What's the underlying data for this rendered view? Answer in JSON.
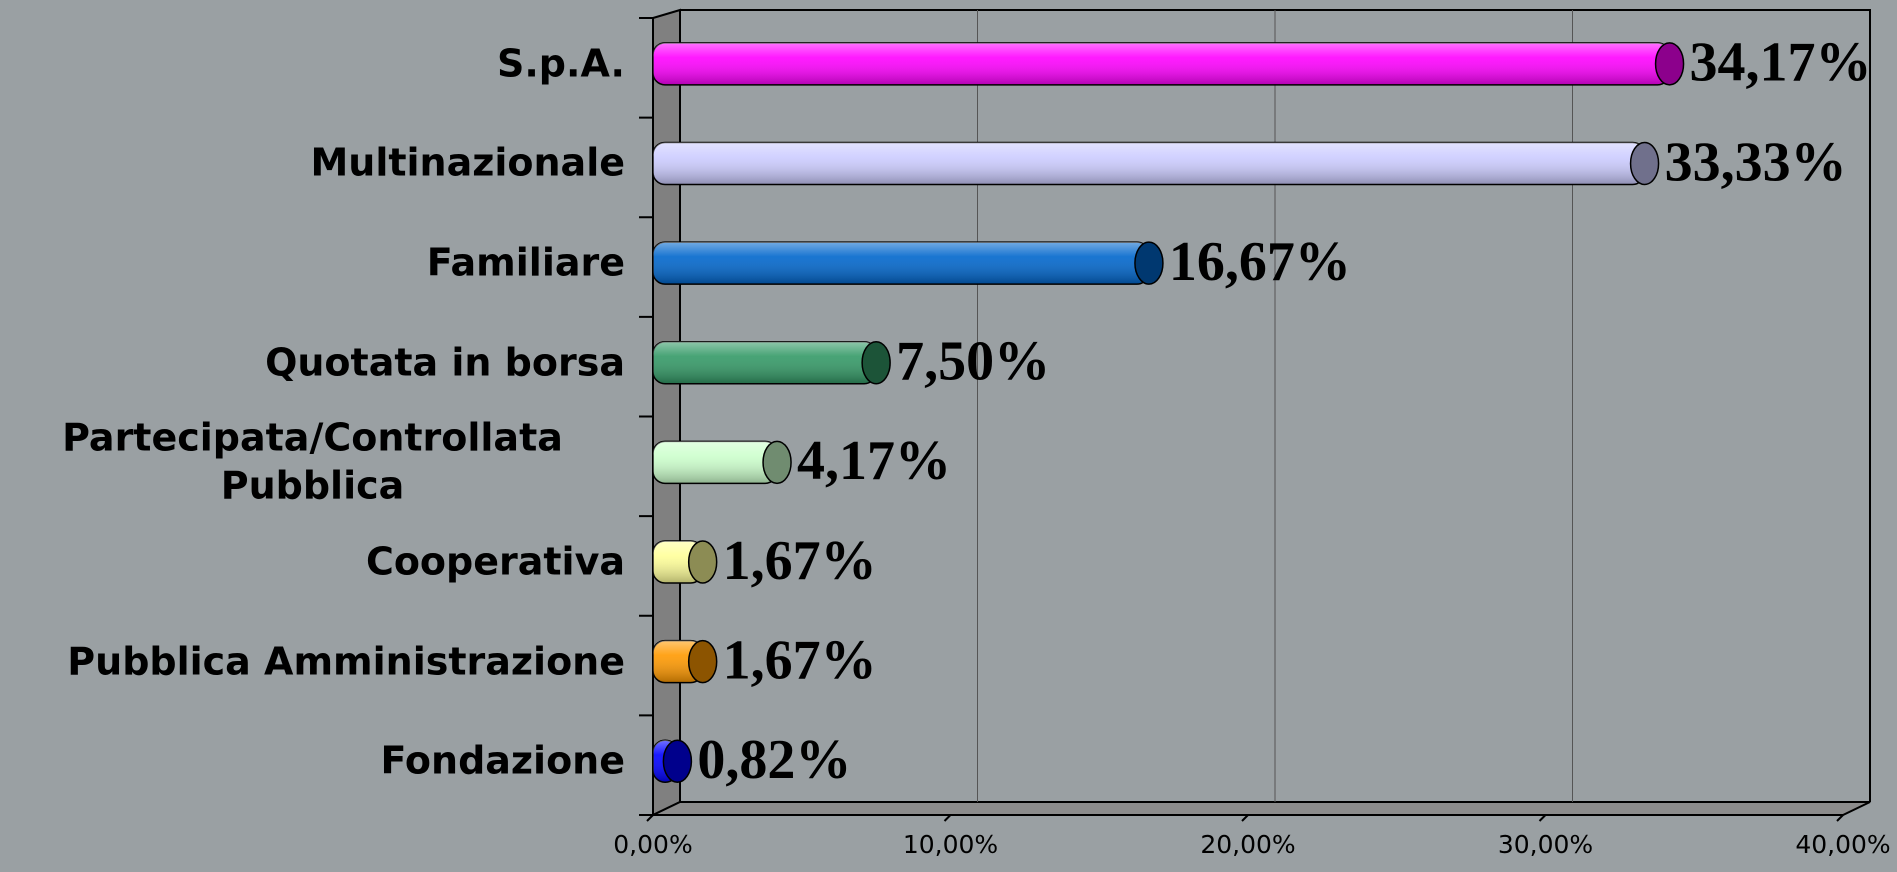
{
  "chart_data": {
    "type": "bar",
    "orientation": "horizontal",
    "categories": [
      "S.p.A.",
      "Multinazionale",
      "Familiare",
      "Quotata in borsa",
      "Partecipata/Controllata Pubblica",
      "Cooperativa",
      "Pubblica Amministrazione",
      "Fondazione"
    ],
    "values": [
      34.17,
      33.33,
      16.67,
      7.5,
      4.17,
      1.67,
      1.67,
      0.82
    ],
    "value_labels": [
      "34,17%",
      "33,33%",
      "16,67%",
      "7,50%",
      "4,17%",
      "1,67%",
      "1,67%",
      "0,82%"
    ],
    "colors": [
      "#ff00ff",
      "#ccccff",
      "#0066cc",
      "#339966",
      "#ccffcc",
      "#ffff99",
      "#ff9900",
      "#0000ff"
    ],
    "xlim": [
      0,
      40
    ],
    "xticks": [
      {
        "value": 0,
        "label": "0,00%"
      },
      {
        "value": 10,
        "label": "10,00%"
      },
      {
        "value": 20,
        "label": "20,00%"
      },
      {
        "value": 30,
        "label": "30,00%"
      },
      {
        "value": 40,
        "label": "40,00%"
      }
    ],
    "grid": true
  }
}
